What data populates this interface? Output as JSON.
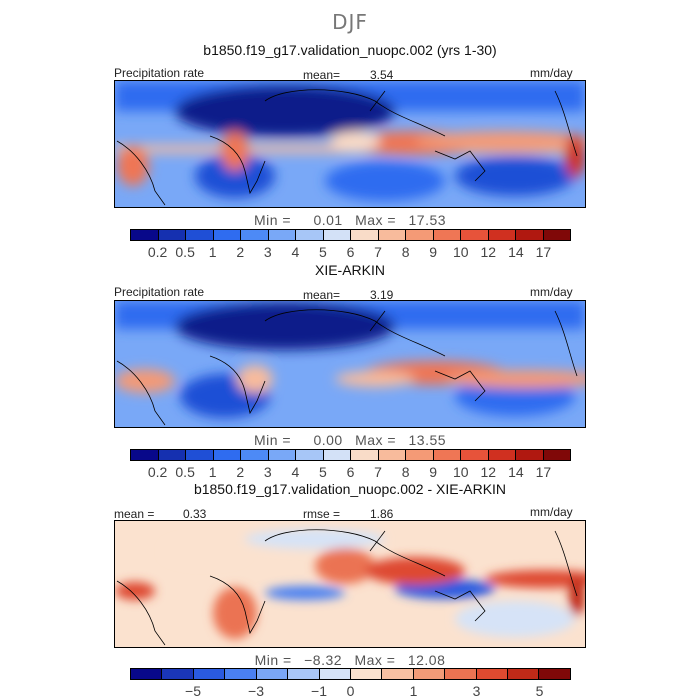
{
  "title": "DJF",
  "panel1": {
    "subtitle": "b1850.f19_g17.validation_nuopc.002 (yrs 1-30)",
    "left_label": "Precipitation rate",
    "mean_label": "mean=",
    "mean_value": "3.54",
    "units": "mm/day",
    "min_label": "Min =",
    "min_value": "0.01",
    "max_label": "Max =",
    "max_value": "17.53"
  },
  "panel2": {
    "subtitle": "XIE-ARKIN",
    "left_label": "Precipitation rate",
    "mean_label": "mean=",
    "mean_value": "3.19",
    "units": "mm/day",
    "min_label": "Min =",
    "min_value": "0.00",
    "max_label": "Max =",
    "max_value": "13.55"
  },
  "panel3": {
    "subtitle": "b1850.f19_g17.validation_nuopc.002 - XIE-ARKIN",
    "mean_label": "mean =",
    "mean_value": "0.33",
    "rmse_label": "rmse =",
    "rmse_value": "1.86",
    "units": "mm/day",
    "min_label": "Min =",
    "min_value": "−8.32",
    "max_label": "Max =",
    "max_value": "12.08"
  },
  "precip_colorbar": {
    "colors": [
      "#08088a",
      "#1530b0",
      "#1f4fd6",
      "#2f6cf0",
      "#4d8af6",
      "#79a8f7",
      "#a7c6f7",
      "#d3e1f7",
      "#f9dcc8",
      "#f8bb9c",
      "#f49a76",
      "#ef7655",
      "#e7533a",
      "#d03020",
      "#b01810",
      "#800808"
    ],
    "tick_labels": [
      "0.2",
      "0.5",
      "1",
      "2",
      "3",
      "4",
      "5",
      "6",
      "7",
      "8",
      "9",
      "10",
      "12",
      "14",
      "17"
    ]
  },
  "diff_colorbar": {
    "colors": [
      "#08088a",
      "#1a36b8",
      "#2a5ae0",
      "#4a80f2",
      "#7aa6f6",
      "#a9c6f7",
      "#d6e3f7",
      "#fbe2cf",
      "#f8c0a2",
      "#f29b78",
      "#eb7352",
      "#de4a30",
      "#c02a18",
      "#800808"
    ],
    "tick_labels": [
      "−5",
      "−3",
      "−1",
      "0",
      "1",
      "3",
      "5"
    ]
  }
}
